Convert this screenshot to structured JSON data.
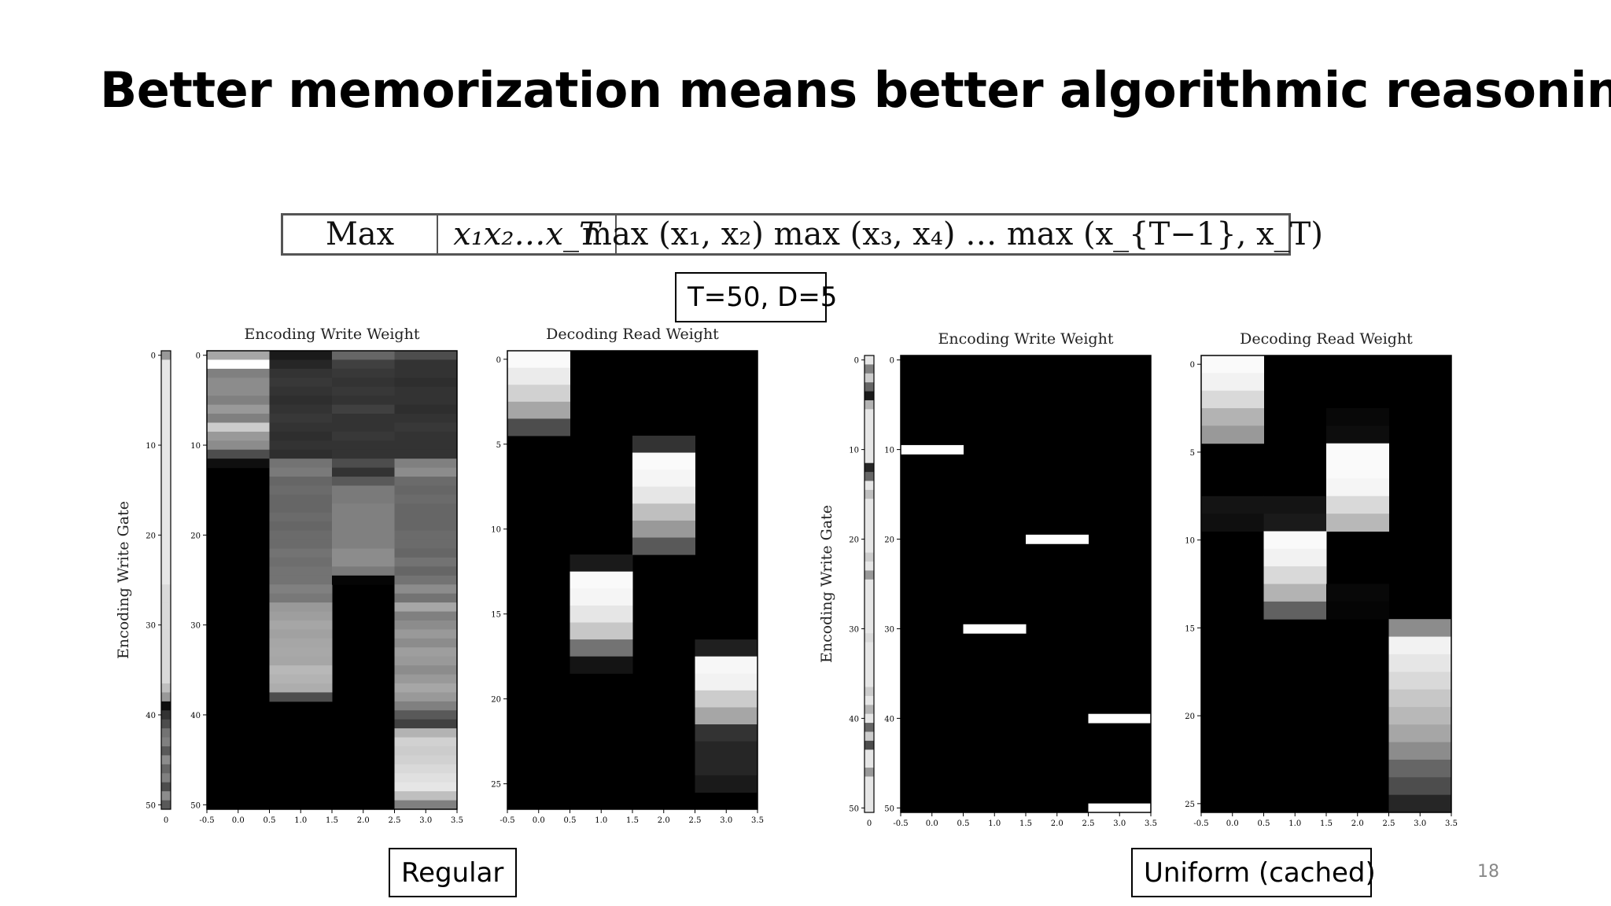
{
  "slide": {
    "title": "Better memorization means better algorithmic reasoning",
    "page_number": "18"
  },
  "task_table": {
    "task": "Max",
    "input": "x₁x₂…x_T",
    "output": "max (x₁, x₂) max (x₃, x₄) … max (x_{T−1}, x_T)"
  },
  "labels": {
    "params": "T=50, D=5",
    "regular": "Regular",
    "uniform": "Uniform (cached)"
  },
  "chart_data": [
    {
      "type": "heatmap",
      "panel": "regular",
      "ylabel": "Encoding Write Gate",
      "gate_ticks": [
        0,
        10,
        20,
        30,
        40,
        50
      ],
      "gate_x_tick": "0",
      "gate_values": [
        0.6,
        0.9,
        0.9,
        0.9,
        0.9,
        0.9,
        0.9,
        0.9,
        0.9,
        0.9,
        0.9,
        0.9,
        0.9,
        0.9,
        0.9,
        0.9,
        0.9,
        0.9,
        0.9,
        0.9,
        0.9,
        0.9,
        0.9,
        0.9,
        0.9,
        0.9,
        0.85,
        0.85,
        0.85,
        0.85,
        0.85,
        0.85,
        0.85,
        0.85,
        0.85,
        0.85,
        0.85,
        0.75,
        0.6,
        0.05,
        0.2,
        0.3,
        0.45,
        0.5,
        0.35,
        0.55,
        0.4,
        0.5,
        0.3,
        0.55,
        0.35
      ],
      "write": {
        "title": "Encoding Write Weight",
        "xticks": [
          "-0.5",
          "0.0",
          "0.5",
          "1.0",
          "1.5",
          "2.0",
          "2.5",
          "3.0",
          "3.5"
        ],
        "yticks": [
          0,
          10,
          20,
          30,
          40,
          50
        ],
        "rows": 51,
        "cols": 4,
        "columns": [
          [
            0.65,
            1.0,
            0.5,
            0.55,
            0.55,
            0.5,
            0.6,
            0.5,
            0.8,
            0.6,
            0.55,
            0.3,
            0.06,
            0,
            0,
            0,
            0,
            0,
            0,
            0,
            0,
            0,
            0,
            0,
            0,
            0,
            0,
            0,
            0,
            0,
            0,
            0,
            0,
            0,
            0,
            0,
            0,
            0,
            0,
            0,
            0,
            0,
            0,
            0,
            0,
            0,
            0,
            0,
            0,
            0,
            0
          ],
          [
            0.1,
            0.15,
            0.2,
            0.22,
            0.2,
            0.18,
            0.2,
            0.22,
            0.2,
            0.18,
            0.2,
            0.18,
            0.45,
            0.48,
            0.4,
            0.42,
            0.4,
            0.4,
            0.42,
            0.4,
            0.42,
            0.42,
            0.45,
            0.43,
            0.45,
            0.45,
            0.5,
            0.47,
            0.6,
            0.62,
            0.65,
            0.63,
            0.65,
            0.66,
            0.65,
            0.72,
            0.7,
            0.68,
            0.3,
            0,
            0,
            0,
            0,
            0,
            0,
            0,
            0,
            0,
            0,
            0,
            0
          ],
          [
            0.4,
            0.25,
            0.22,
            0.2,
            0.22,
            0.2,
            0.25,
            0.2,
            0.2,
            0.22,
            0.2,
            0.2,
            0.3,
            0.2,
            0.35,
            0.48,
            0.48,
            0.5,
            0.5,
            0.5,
            0.5,
            0.5,
            0.55,
            0.55,
            0.48,
            0.02,
            0,
            0,
            0,
            0,
            0,
            0,
            0,
            0,
            0,
            0,
            0,
            0,
            0,
            0,
            0,
            0,
            0,
            0,
            0,
            0,
            0,
            0,
            0,
            0,
            0
          ],
          [
            0.3,
            0.2,
            0.2,
            0.18,
            0.2,
            0.2,
            0.18,
            0.2,
            0.22,
            0.2,
            0.2,
            0.2,
            0.5,
            0.55,
            0.42,
            0.4,
            0.42,
            0.4,
            0.4,
            0.4,
            0.42,
            0.42,
            0.4,
            0.45,
            0.4,
            0.45,
            0.55,
            0.45,
            0.65,
            0.5,
            0.55,
            0.6,
            0.55,
            0.62,
            0.6,
            0.55,
            0.6,
            0.65,
            0.6,
            0.5,
            0.35,
            0.25,
            0.7,
            0.82,
            0.8,
            0.82,
            0.85,
            0.88,
            0.9,
            0.75,
            0.5
          ]
        ]
      },
      "read": {
        "title": "Decoding Read Weight",
        "xticks": [
          "-0.5",
          "0.0",
          "0.5",
          "1.0",
          "1.5",
          "2.0",
          "2.5",
          "3.0",
          "3.5"
        ],
        "yticks": [
          0,
          5,
          10,
          15,
          20,
          25
        ],
        "rows": 27,
        "cols": 4,
        "columns": [
          [
            0.98,
            0.92,
            0.82,
            0.65,
            0.3,
            0,
            0,
            0,
            0,
            0,
            0,
            0,
            0,
            0,
            0,
            0,
            0,
            0,
            0,
            0,
            0,
            0,
            0,
            0,
            0,
            0,
            0
          ],
          [
            0,
            0,
            0,
            0,
            0,
            0,
            0,
            0,
            0,
            0,
            0,
            0,
            0.1,
            0.98,
            0.96,
            0.9,
            0.78,
            0.45,
            0.08,
            0,
            0,
            0,
            0,
            0,
            0,
            0,
            0
          ],
          [
            0,
            0,
            0,
            0,
            0,
            0.2,
            0.98,
            0.96,
            0.9,
            0.75,
            0.6,
            0.35,
            0,
            0,
            0,
            0,
            0,
            0,
            0,
            0,
            0,
            0,
            0,
            0,
            0,
            0,
            0
          ],
          [
            0,
            0,
            0,
            0,
            0,
            0,
            0,
            0,
            0,
            0,
            0,
            0,
            0,
            0,
            0,
            0,
            0,
            0.12,
            0.97,
            0.95,
            0.8,
            0.65,
            0.2,
            0.15,
            0.15,
            0.1,
            0
          ]
        ]
      }
    },
    {
      "type": "heatmap",
      "panel": "uniform",
      "ylabel": "Encoding Write Gate",
      "gate_ticks": [
        0,
        10,
        20,
        30,
        40,
        50
      ],
      "gate_x_tick": "0",
      "gate_values": [
        0.9,
        0.5,
        0.8,
        0.4,
        0.1,
        0.7,
        0.9,
        0.9,
        0.9,
        0.9,
        0.9,
        0.9,
        0.15,
        0.4,
        0.9,
        0.75,
        0.9,
        0.9,
        0.9,
        0.9,
        0.9,
        0.9,
        0.8,
        0.9,
        0.6,
        0.9,
        0.9,
        0.9,
        0.9,
        0.9,
        0.9,
        0.85,
        0.9,
        0.9,
        0.9,
        0.9,
        0.9,
        0.8,
        0.9,
        0.7,
        0.9,
        0.4,
        0.8,
        0.3,
        0.9,
        0.9,
        0.6,
        0.9,
        0.9,
        0.9,
        0.9
      ],
      "write": {
        "title": "Encoding Write Weight",
        "xticks": [
          "-0.5",
          "0.0",
          "0.5",
          "1.0",
          "1.5",
          "2.0",
          "2.5",
          "3.0",
          "3.5"
        ],
        "yticks": [
          0,
          10,
          20,
          30,
          40,
          50
        ],
        "rows": 51,
        "cols": 4,
        "columns": [
          [
            0,
            0,
            0,
            0,
            0,
            0,
            0,
            0,
            0,
            0,
            1,
            0,
            0,
            0,
            0,
            0,
            0,
            0,
            0,
            0,
            0,
            0,
            0,
            0,
            0,
            0,
            0,
            0,
            0,
            0,
            0,
            0,
            0,
            0,
            0,
            0,
            0,
            0,
            0,
            0,
            0,
            0,
            0,
            0,
            0,
            0,
            0,
            0,
            0,
            0,
            0
          ],
          [
            0,
            0,
            0,
            0,
            0,
            0,
            0,
            0,
            0,
            0,
            0,
            0,
            0,
            0,
            0,
            0,
            0,
            0,
            0,
            0,
            0,
            0,
            0,
            0,
            0,
            0,
            0,
            0,
            0,
            0,
            1,
            0,
            0,
            0,
            0,
            0,
            0,
            0,
            0,
            0,
            0,
            0,
            0,
            0,
            0,
            0,
            0,
            0,
            0,
            0,
            0
          ],
          [
            0,
            0,
            0,
            0,
            0,
            0,
            0,
            0,
            0,
            0,
            0,
            0,
            0,
            0,
            0,
            0,
            0,
            0,
            0,
            0,
            1,
            0,
            0,
            0,
            0,
            0,
            0,
            0,
            0,
            0,
            0,
            0,
            0,
            0,
            0,
            0,
            0,
            0,
            0,
            0,
            0,
            0,
            0,
            0,
            0,
            0,
            0,
            0,
            0,
            0,
            0
          ],
          [
            0,
            0,
            0,
            0,
            0,
            0,
            0,
            0,
            0,
            0,
            0,
            0,
            0,
            0,
            0,
            0,
            0,
            0,
            0,
            0,
            0,
            0,
            0,
            0,
            0,
            0,
            0,
            0,
            0,
            0,
            0,
            0,
            0,
            0,
            0,
            0,
            0,
            0,
            0,
            0,
            1,
            0,
            0,
            0,
            0,
            0,
            0,
            0,
            0,
            0,
            1
          ]
        ]
      },
      "read": {
        "title": "Decoding Read Weight",
        "xticks": [
          "-0.5",
          "0.0",
          "0.5",
          "1.0",
          "1.5",
          "2.0",
          "2.5",
          "3.0",
          "3.5"
        ],
        "yticks": [
          0,
          5,
          10,
          15,
          20,
          25
        ],
        "rows": 26,
        "cols": 4,
        "columns": [
          [
            0.98,
            0.95,
            0.85,
            0.7,
            0.6,
            0,
            0,
            0,
            0.08,
            0.06,
            0,
            0,
            0,
            0,
            0,
            0,
            0,
            0,
            0,
            0,
            0,
            0,
            0,
            0,
            0,
            0
          ],
          [
            0,
            0,
            0,
            0,
            0,
            0,
            0,
            0,
            0.08,
            0.1,
            0.98,
            0.95,
            0.85,
            0.7,
            0.38,
            0,
            0,
            0,
            0,
            0,
            0,
            0,
            0,
            0,
            0,
            0
          ],
          [
            0,
            0,
            0,
            0.03,
            0.05,
            0.98,
            0.98,
            0.96,
            0.85,
            0.72,
            0,
            0,
            0,
            0.03,
            0.02,
            0,
            0,
            0,
            0,
            0,
            0,
            0,
            0,
            0,
            0,
            0
          ],
          [
            0,
            0,
            0,
            0,
            0,
            0,
            0,
            0,
            0,
            0,
            0,
            0,
            0,
            0,
            0,
            0.55,
            0.95,
            0.9,
            0.85,
            0.78,
            0.72,
            0.65,
            0.55,
            0.4,
            0.3,
            0.15
          ]
        ]
      }
    }
  ]
}
